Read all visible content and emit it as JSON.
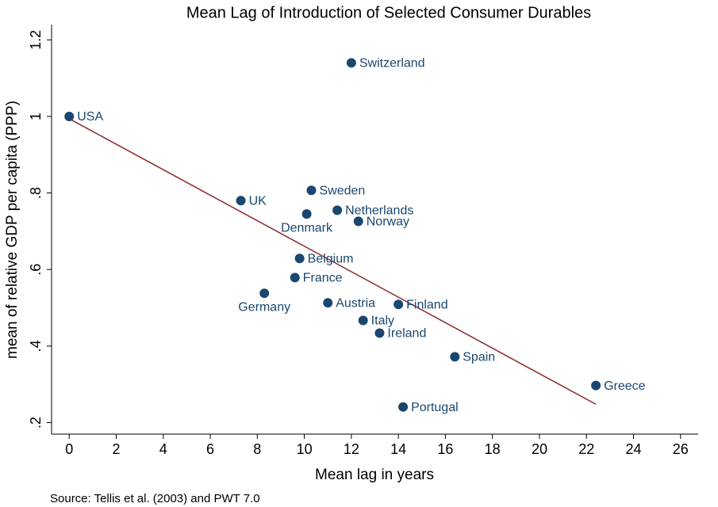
{
  "chart_data": {
    "type": "scatter",
    "title": "Mean Lag of Introduction of Selected Consumer Durables",
    "x_label": "Mean lag in years",
    "y_label": "mean of relative GDP per capita (PPP)",
    "note": "Source: Tellis et al. (2003) and PWT 7.0",
    "point_labels": [
      "USA",
      "Switzerland",
      "UK",
      "Sweden",
      "Denmark",
      "Netherlands",
      "Norway",
      "Belgium",
      "France",
      "Germany",
      "Austria",
      "Finland",
      "Italy",
      "Ireland",
      "Spain",
      "Greece",
      "Portugal"
    ],
    "x": [
      0,
      12,
      7.3,
      10.3,
      10.1,
      11.4,
      12.3,
      9.8,
      9.6,
      8.3,
      11,
      14,
      12.5,
      13.2,
      16.4,
      22.4,
      14.2
    ],
    "values": [
      1,
      1.14,
      0.78,
      0.807,
      0.745,
      0.755,
      0.726,
      0.629,
      0.579,
      0.538,
      0.513,
      0.509,
      0.467,
      0.434,
      0.372,
      0.297,
      0.241
    ],
    "label_positions": [
      "right",
      "right",
      "right",
      "right",
      "below",
      "right",
      "right",
      "right",
      "right",
      "below",
      "right",
      "right",
      "right",
      "right",
      "right",
      "right",
      "right"
    ],
    "color": "#1a476f",
    "fit_line": {
      "x": [
        0,
        22.4
      ],
      "values": [
        0.994,
        0.248
      ],
      "color": "#90353b"
    },
    "xlim": [
      -0.75,
      26.75
    ],
    "ylim": [
      0.17,
      1.24
    ],
    "xticks": [
      0,
      2,
      4,
      6,
      8,
      10,
      12,
      14,
      16,
      18,
      20,
      22,
      24,
      26
    ],
    "yticks": [
      {
        "value": 0.2,
        "label": ".2"
      },
      {
        "value": 0.4,
        "label": ".4"
      },
      {
        "value": 0.6,
        "label": ".6"
      },
      {
        "value": 0.8,
        "label": ".8"
      },
      1,
      1.2
    ]
  }
}
